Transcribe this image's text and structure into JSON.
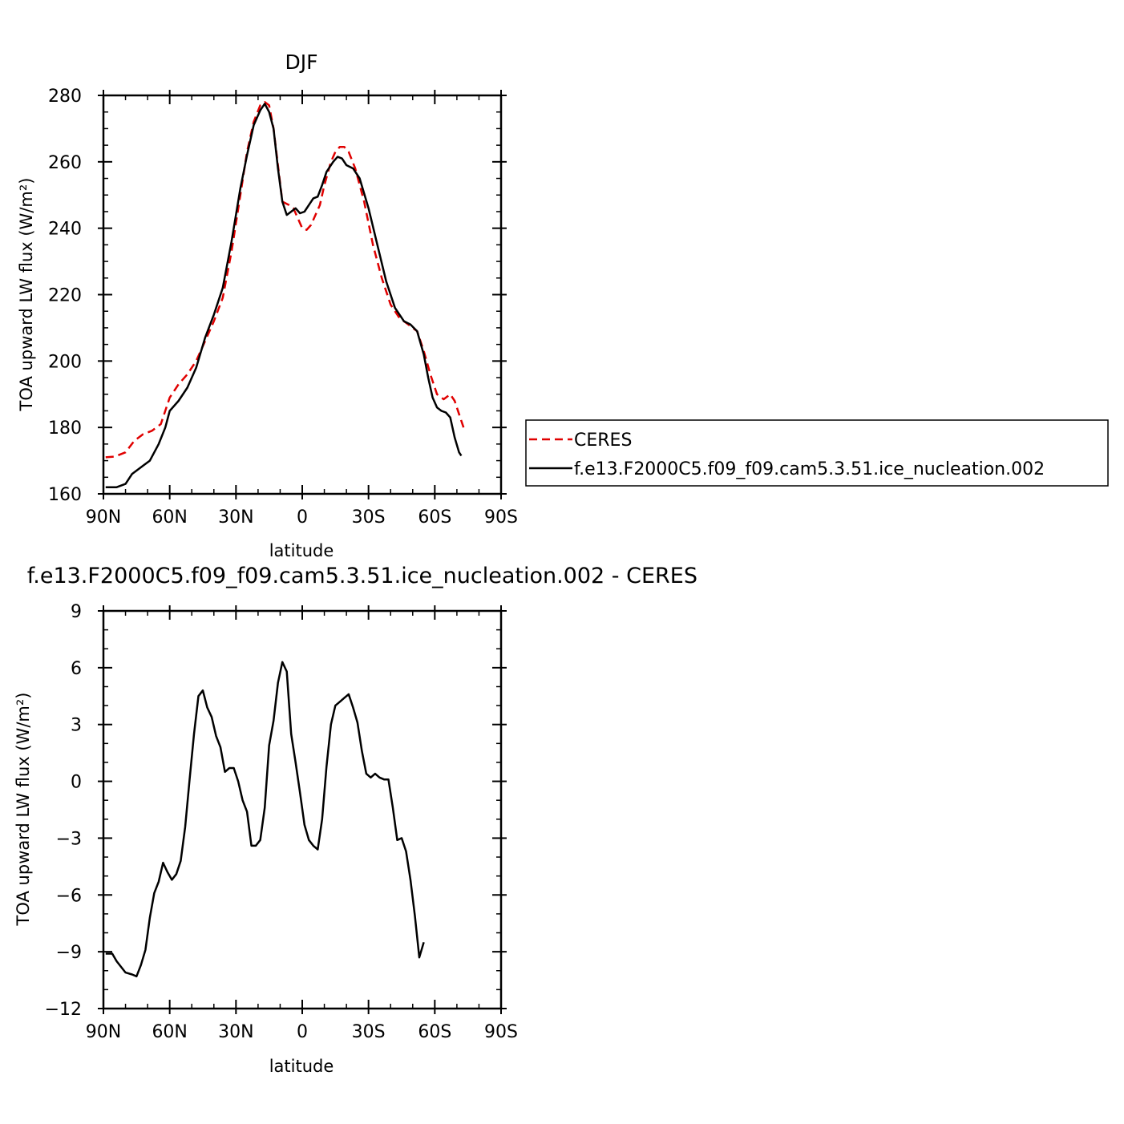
{
  "chart_data": [
    {
      "type": "line",
      "title": "DJF",
      "xlabel": "latitude",
      "ylabel": "TOA upward LW flux (W/m²)",
      "xlim": [
        -90,
        90
      ],
      "ylim": [
        160,
        280
      ],
      "xticks": [
        -90,
        -60,
        -30,
        0,
        30,
        60,
        90
      ],
      "xtick_labels": [
        "90N",
        "60N",
        "30N",
        "0",
        "30S",
        "60S",
        "90S"
      ],
      "yticks": [
        160,
        180,
        200,
        220,
        240,
        260,
        280
      ],
      "ytick_labels": [
        "160",
        "180",
        "200",
        "220",
        "240",
        "260",
        "280"
      ],
      "grid": false,
      "legend_position": "outside-right",
      "series": [
        {
          "name": "CERES",
          "color": "#e00000",
          "dash": "dashed",
          "points": [
            [
              -89,
              171
            ],
            [
              -85,
              171.2
            ],
            [
              -80,
              172.5
            ],
            [
              -76,
              176
            ],
            [
              -72,
              178
            ],
            [
              -68,
              179
            ],
            [
              -64,
              181
            ],
            [
              -60,
              189
            ],
            [
              -56,
              193
            ],
            [
              -52,
              196
            ],
            [
              -48,
              200
            ],
            [
              -44,
              206
            ],
            [
              -40,
              212
            ],
            [
              -36,
              219
            ],
            [
              -32,
              233
            ],
            [
              -28,
              250
            ],
            [
              -25,
              263
            ],
            [
              -22,
              272
            ],
            [
              -19,
              277
            ],
            [
              -17,
              278
            ],
            [
              -15,
              277
            ],
            [
              -13,
              270
            ],
            [
              -11,
              259
            ],
            [
              -9,
              248
            ],
            [
              -6,
              247
            ],
            [
              -4,
              246
            ],
            [
              -2,
              243
            ],
            [
              0,
              240
            ],
            [
              2,
              239.5
            ],
            [
              4,
              241
            ],
            [
              6,
              244
            ],
            [
              8,
              247
            ],
            [
              10,
              253
            ],
            [
              13,
              260
            ],
            [
              15,
              263
            ],
            [
              17,
              264.5
            ],
            [
              19,
              264.5
            ],
            [
              21,
              263
            ],
            [
              24,
              258
            ],
            [
              28,
              248
            ],
            [
              32,
              235
            ],
            [
              36,
              225
            ],
            [
              40,
              217
            ],
            [
              44,
              213
            ],
            [
              48,
              211
            ],
            [
              52,
              209
            ],
            [
              55,
              203
            ],
            [
              58,
              196
            ],
            [
              61,
              190
            ],
            [
              64,
              188.5
            ],
            [
              67,
              190
            ],
            [
              69,
              188
            ],
            [
              72,
              182
            ],
            [
              73,
              180
            ]
          ]
        },
        {
          "name": "f.e13.F2000C5.f09_f09.cam5.3.51.ice_nucleation.002",
          "color": "#000000",
          "dash": "solid",
          "points": [
            [
              -89,
              162
            ],
            [
              -86,
              162
            ],
            [
              -84,
              162
            ],
            [
              -80,
              163
            ],
            [
              -77,
              166
            ],
            [
              -72,
              168.5
            ],
            [
              -69,
              170
            ],
            [
              -65,
              175
            ],
            [
              -62,
              180
            ],
            [
              -60,
              185
            ],
            [
              -56,
              188
            ],
            [
              -52,
              192
            ],
            [
              -48,
              198
            ],
            [
              -44,
              207
            ],
            [
              -40,
              214
            ],
            [
              -36,
              222
            ],
            [
              -32,
              236
            ],
            [
              -28,
              252
            ],
            [
              -25,
              262
            ],
            [
              -22,
              271
            ],
            [
              -19,
              275.5
            ],
            [
              -17,
              277.5
            ],
            [
              -15,
              275
            ],
            [
              -13,
              270
            ],
            [
              -11,
              258
            ],
            [
              -9,
              248
            ],
            [
              -7,
              244
            ],
            [
              -5,
              245
            ],
            [
              -3,
              246
            ],
            [
              -1,
              244.5
            ],
            [
              1,
              245
            ],
            [
              3,
              247
            ],
            [
              5,
              249
            ],
            [
              7,
              249.5
            ],
            [
              9,
              253
            ],
            [
              11,
              257
            ],
            [
              14,
              260
            ],
            [
              16,
              261.5
            ],
            [
              18,
              261
            ],
            [
              20,
              259
            ],
            [
              23,
              258
            ],
            [
              26,
              255
            ],
            [
              30,
              246
            ],
            [
              34,
              235
            ],
            [
              38,
              224
            ],
            [
              42,
              216
            ],
            [
              46,
              212
            ],
            [
              49,
              211
            ],
            [
              52,
              209
            ],
            [
              55,
              202
            ],
            [
              57,
              195
            ],
            [
              59,
              189
            ],
            [
              61,
              186
            ],
            [
              63,
              185
            ],
            [
              65,
              184.5
            ],
            [
              67,
              183
            ],
            [
              69,
              177
            ],
            [
              71,
              172.5
            ],
            [
              72,
              171.5
            ]
          ]
        }
      ]
    },
    {
      "type": "line",
      "title": "f.e13.F2000C5.f09_f09.cam5.3.51.ice_nucleation.002 - CERES",
      "xlabel": "latitude",
      "ylabel": "TOA upward LW flux (W/m²)",
      "xlim": [
        -90,
        90
      ],
      "ylim": [
        -12,
        9
      ],
      "xticks": [
        -90,
        -60,
        -30,
        0,
        30,
        60,
        90
      ],
      "xtick_labels": [
        "90N",
        "60N",
        "30N",
        "0",
        "30S",
        "60S",
        "90S"
      ],
      "yticks": [
        -12,
        -9,
        -6,
        -3,
        0,
        3,
        6,
        9
      ],
      "ytick_labels": [
        "−12",
        "−9",
        "−6",
        "−3",
        "0",
        "3",
        "6",
        "9"
      ],
      "grid": false,
      "series": [
        {
          "color": "#000000",
          "dash": "solid",
          "points": [
            [
              -89,
              -9.1
            ],
            [
              -86,
              -9.1
            ],
            [
              -84,
              -9.5
            ],
            [
              -82,
              -9.8
            ],
            [
              -80,
              -10.1
            ],
            [
              -77,
              -10.2
            ],
            [
              -75,
              -10.3
            ],
            [
              -73,
              -9.7
            ],
            [
              -71,
              -8.9
            ],
            [
              -69,
              -7.2
            ],
            [
              -67,
              -5.9
            ],
            [
              -65,
              -5.3
            ],
            [
              -63,
              -4.3
            ],
            [
              -61,
              -4.8
            ],
            [
              -59,
              -5.2
            ],
            [
              -57,
              -4.9
            ],
            [
              -55,
              -4.2
            ],
            [
              -53,
              -2.4
            ],
            [
              -51,
              0.1
            ],
            [
              -49,
              2.5
            ],
            [
              -47,
              4.5
            ],
            [
              -45,
              4.8
            ],
            [
              -43,
              3.9
            ],
            [
              -41,
              3.4
            ],
            [
              -39,
              2.4
            ],
            [
              -37,
              1.8
            ],
            [
              -35,
              0.5
            ],
            [
              -33,
              0.7
            ],
            [
              -31,
              0.7
            ],
            [
              -29,
              0
            ],
            [
              -27,
              -1
            ],
            [
              -25,
              -1.6
            ],
            [
              -23,
              -3.4
            ],
            [
              -21,
              -3.4
            ],
            [
              -19,
              -3.1
            ],
            [
              -17,
              -1.4
            ],
            [
              -15,
              1.9
            ],
            [
              -13,
              3.2
            ],
            [
              -11,
              5.2
            ],
            [
              -9,
              6.3
            ],
            [
              -7,
              5.8
            ],
            [
              -5,
              2.5
            ],
            [
              -3,
              1
            ],
            [
              -1,
              -0.6
            ],
            [
              1,
              -2.3
            ],
            [
              3,
              -3.1
            ],
            [
              5,
              -3.4
            ],
            [
              7,
              -3.6
            ],
            [
              9,
              -2
            ],
            [
              11,
              0.8
            ],
            [
              13,
              3
            ],
            [
              15,
              4
            ],
            [
              17,
              4.2
            ],
            [
              19,
              4.4
            ],
            [
              21,
              4.6
            ],
            [
              23,
              3.9
            ],
            [
              25,
              3.1
            ],
            [
              27,
              1.6
            ],
            [
              29,
              0.4
            ],
            [
              31,
              0.2
            ],
            [
              33,
              0.4
            ],
            [
              35,
              0.2
            ],
            [
              37,
              0.1
            ],
            [
              39,
              0.1
            ],
            [
              41,
              -1.4
            ],
            [
              43,
              -3.1
            ],
            [
              45,
              -3
            ],
            [
              47,
              -3.7
            ],
            [
              49,
              -5.2
            ],
            [
              51,
              -7.1
            ],
            [
              53,
              -9.3
            ],
            [
              55,
              -8.5
            ]
          ]
        }
      ]
    }
  ]
}
